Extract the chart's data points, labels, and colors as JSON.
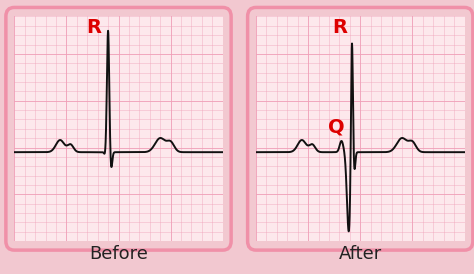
{
  "outer_bg": "#f2c8d0",
  "panel_bg": "#fde8ec",
  "grid_color": "#f0a0b8",
  "ecg_color": "#111111",
  "label_color": "#dd0000",
  "border_color": "#f090a8",
  "title_before": "Before",
  "title_after": "After",
  "R_label": "R",
  "Q_label": "Q",
  "title_fontsize": 13,
  "label_fontsize": 14,
  "ecg_lw": 1.4,
  "figsize": [
    4.74,
    2.74
  ],
  "dpi": 100
}
